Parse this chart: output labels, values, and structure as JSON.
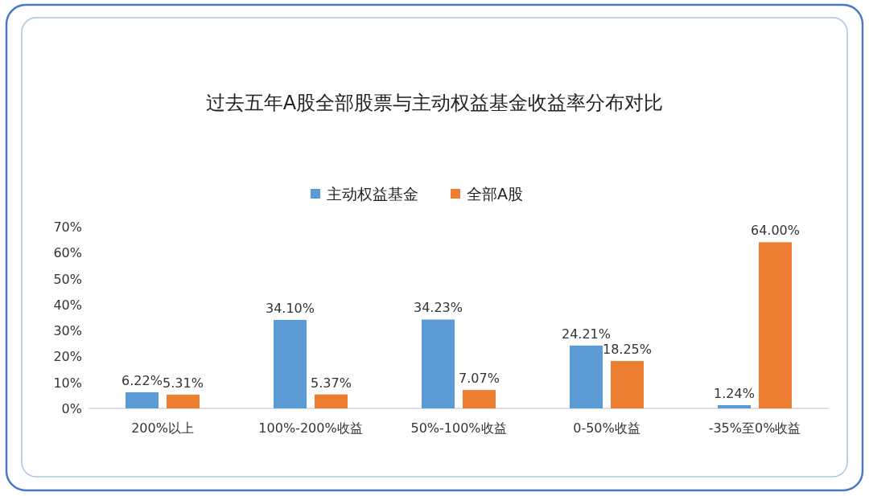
{
  "chart_data": {
    "type": "bar",
    "title": "过去五年A股全部股票与主动权益基金收益率分布对比",
    "categories": [
      "200%以上",
      "100%-200%收益",
      "50%-100%收益",
      "0-50%收益",
      "-35%至0%收益"
    ],
    "series": [
      {
        "name": "主动权益基金",
        "color": "#5b9bd5",
        "values": [
          6.22,
          34.1,
          34.23,
          24.21,
          1.24
        ],
        "value_labels": [
          "6.22%",
          "34.10%",
          "34.23%",
          "24.21%",
          "1.24%"
        ]
      },
      {
        "name": "全部A股",
        "color": "#ed7d31",
        "values": [
          5.31,
          5.37,
          7.07,
          18.25,
          64.0
        ],
        "value_labels": [
          "5.31%",
          "5.37%",
          "7.07%",
          "18.25%",
          "64.00%"
        ]
      }
    ],
    "ylim": [
      0,
      70
    ],
    "yticks": [
      {
        "value": 0,
        "label": "0%"
      },
      {
        "value": 10,
        "label": "10%"
      },
      {
        "value": 20,
        "label": "20%"
      },
      {
        "value": 30,
        "label": "30%"
      },
      {
        "value": 40,
        "label": "40%"
      },
      {
        "value": 50,
        "label": "50%"
      },
      {
        "value": 60,
        "label": "60%"
      },
      {
        "value": 70,
        "label": "70%"
      }
    ],
    "legend": "top"
  }
}
